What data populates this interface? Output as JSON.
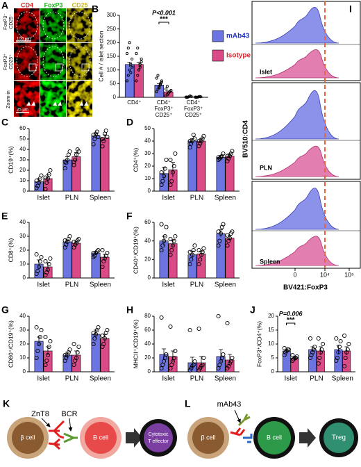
{
  "panels": {
    "A": {
      "label": "A",
      "columns": [
        "CD4",
        "FoxP3",
        "CD25"
      ],
      "rows": [
        [
          "FoxP3⁻",
          "CD25⁻"
        ],
        [
          "FoxP3⁺",
          "CD25⁺"
        ],
        [
          "Zoom-in"
        ]
      ],
      "scale_bars": [
        "100 μm",
        "25 μm"
      ]
    },
    "I": {
      "label": "I",
      "samples": [
        "Islet",
        "PLN",
        "Spleen"
      ],
      "x_label": "BV421:FoxP3",
      "y_label": "BV510:CD4",
      "x_tick_labels": [
        "0",
        "10⁴",
        "10⁵"
      ]
    },
    "K": {
      "label": "K",
      "labels": [
        "ZnT8",
        "BCR"
      ],
      "cells": [
        [
          "β cell"
        ],
        [
          "B cell"
        ],
        [
          "Cytotoxic",
          "T effector"
        ]
      ]
    },
    "L": {
      "label": "L",
      "labels": [
        "mAb43"
      ],
      "cells": [
        [
          "β cell"
        ],
        [
          "B cell"
        ],
        [
          "Treg"
        ]
      ]
    }
  },
  "chart_data": [
    {
      "type": "bar",
      "label": "B",
      "ylabel": "Cell # / islet section",
      "categories": [
        "CD4⁺",
        "CD4⁺ FoxP3⁺ CD25⁺",
        "CD4⁺ FoxP3⁺ CD25⁺"
      ],
      "series": [
        {
          "name": "mAb43",
          "color": "#6b74e0",
          "values": [
            120,
            45,
            2
          ],
          "errors": [
            8,
            5,
            1
          ],
          "points": [
            [
              60,
              80,
              100,
              120,
              140,
              160,
              180,
              200,
              90,
              110
            ],
            [
              20,
              30,
              40,
              50,
              60,
              70,
              80,
              35,
              45,
              55
            ],
            [
              0,
              0,
              2,
              5,
              3,
              1
            ]
          ]
        },
        {
          "name": "Isotype",
          "color": "#d94a86",
          "values": [
            120,
            20,
            2
          ],
          "errors": [
            8,
            3,
            1
          ],
          "points": [
            [
              60,
              80,
              100,
              120,
              140,
              160,
              180,
              100,
              110,
              130
            ],
            [
              5,
              10,
              15,
              20,
              25,
              30,
              40,
              15,
              20,
              25
            ],
            [
              0,
              0,
              1,
              3,
              2,
              1
            ]
          ]
        }
      ],
      "ylim": [
        0,
        300
      ],
      "yticks": [
        0,
        50,
        100,
        150,
        200,
        250,
        300
      ],
      "annotations": [
        "P<0.001",
        "***"
      ]
    },
    {
      "type": "bar",
      "label": "C",
      "ylabel": "CD19⁺(%)",
      "categories": [
        "Islet",
        "PLN",
        "Spleen"
      ],
      "series": [
        {
          "color": "#6b74e0",
          "values": [
            9,
            30,
            53
          ],
          "errors": [
            3,
            3,
            2
          ],
          "points": [
            [
              3,
              5,
              8,
              12,
              15,
              10
            ],
            [
              22,
              27,
              30,
              35,
              38,
              28
            ],
            [
              45,
              50,
              55,
              57,
              52,
              54
            ]
          ]
        },
        {
          "color": "#d94a86",
          "values": [
            12,
            33,
            51
          ],
          "errors": [
            4,
            4,
            3
          ],
          "points": [
            [
              2,
              8,
              12,
              16,
              20,
              13
            ],
            [
              25,
              30,
              35,
              40,
              38,
              28
            ],
            [
              43,
              48,
              55,
              58,
              52,
              50
            ]
          ]
        }
      ],
      "ylim": [
        0,
        60
      ],
      "yticks": [
        0,
        10,
        20,
        30,
        40,
        50,
        60
      ]
    },
    {
      "type": "bar",
      "label": "D",
      "ylabel": "CD4⁺(%)",
      "categories": [
        "Islet",
        "PLN",
        "Spleen"
      ],
      "series": [
        {
          "color": "#6b74e0",
          "values": [
            14,
            40,
            27
          ],
          "errors": [
            5,
            2,
            1.5
          ],
          "points": [
            [
              5,
              8,
              12,
              18,
              25,
              15
            ],
            [
              35,
              38,
              40,
              45,
              42,
              40
            ],
            [
              25,
              26,
              27,
              28,
              30,
              27
            ]
          ]
        },
        {
          "color": "#d94a86",
          "values": [
            17,
            40,
            28
          ],
          "errors": [
            6,
            2,
            2
          ],
          "points": [
            [
              5,
              8,
              15,
              20,
              30,
              25
            ],
            [
              36,
              38,
              40,
              42,
              44,
              40
            ],
            [
              24,
              26,
              28,
              30,
              32,
              28
            ]
          ]
        }
      ],
      "ylim": [
        0,
        50
      ],
      "yticks": [
        0,
        10,
        20,
        30,
        40,
        50
      ]
    },
    {
      "type": "bar",
      "label": "E",
      "ylabel": "CD8⁺(%)",
      "categories": [
        "Islet",
        "PLN",
        "Spleen"
      ],
      "series": [
        {
          "color": "#6b74e0",
          "values": [
            10,
            26,
            18
          ],
          "errors": [
            3,
            1.5,
            1
          ],
          "points": [
            [
              3,
              5,
              8,
              12,
              15,
              17
            ],
            [
              22,
              24,
              26,
              28,
              30,
              27
            ],
            [
              15,
              16,
              18,
              19,
              20,
              18
            ]
          ]
        },
        {
          "color": "#d94a86",
          "values": [
            8,
            25,
            15
          ],
          "errors": [
            3,
            1.5,
            2
          ],
          "points": [
            [
              2,
              4,
              6,
              10,
              14,
              12
            ],
            [
              22,
              24,
              25,
              27,
              28,
              26
            ],
            [
              8,
              12,
              14,
              16,
              18,
              20
            ]
          ]
        }
      ],
      "ylim": [
        0,
        40
      ],
      "yticks": [
        0,
        10,
        20,
        30,
        40
      ]
    },
    {
      "type": "bar",
      "label": "F",
      "ylabel": "CD40⁺/CD19⁺(%)",
      "categories": [
        "Islet",
        "PLN",
        "Spleen"
      ],
      "series": [
        {
          "color": "#6b74e0",
          "values": [
            40,
            25,
            48
          ],
          "errors": [
            5,
            4,
            4
          ],
          "points": [
            [
              30,
              35,
              40,
              45,
              55,
              58
            ],
            [
              15,
              20,
              25,
              30,
              35,
              28
            ],
            [
              35,
              40,
              48,
              55,
              58,
              50
            ]
          ]
        },
        {
          "color": "#d94a86",
          "values": [
            37,
            26,
            43
          ],
          "errors": [
            4,
            3,
            3
          ],
          "points": [
            [
              25,
              30,
              35,
              40,
              45,
              42
            ],
            [
              15,
              20,
              25,
              28,
              32,
              30
            ],
            [
              35,
              40,
              43,
              48,
              50,
              46
            ]
          ]
        }
      ],
      "ylim": [
        0,
        60
      ],
      "yticks": [
        0,
        20,
        40,
        60
      ]
    },
    {
      "type": "bar",
      "label": "G",
      "ylabel": "CD80⁺/CD19⁺(%)",
      "categories": [
        "Islet",
        "PLN",
        "Spleen"
      ],
      "series": [
        {
          "color": "#6b74e0",
          "values": [
            22,
            12,
            27
          ],
          "errors": [
            3,
            2,
            3
          ],
          "points": [
            [
              10,
              15,
              20,
              25,
              30,
              32
            ],
            [
              8,
              10,
              12,
              14,
              16,
              12
            ],
            [
              20,
              24,
              27,
              30,
              32,
              28
            ]
          ]
        },
        {
          "color": "#d94a86",
          "values": [
            15,
            12,
            24
          ],
          "errors": [
            3,
            3,
            3
          ],
          "points": [
            [
              5,
              8,
              12,
              18,
              22,
              25
            ],
            [
              5,
              8,
              10,
              14,
              18,
              20
            ],
            [
              18,
              20,
              24,
              28,
              30,
              26
            ]
          ]
        }
      ],
      "ylim": [
        0,
        40
      ],
      "yticks": [
        0,
        10,
        20,
        30,
        40
      ]
    },
    {
      "type": "bar",
      "label": "H",
      "ylabel": "MHCII⁺/CD19⁺(%)",
      "categories": [
        "Islet",
        "PLN",
        "Spleen"
      ],
      "series": [
        {
          "color": "#6b74e0",
          "values": [
            25,
            13,
            22
          ],
          "errors": [
            8,
            8,
            10
          ],
          "points": [
            [
              5,
              10,
              15,
              20,
              25,
              78
            ],
            [
              2,
              5,
              8,
              10,
              15,
              60
            ],
            [
              5,
              10,
              15,
              20,
              25,
              80
            ]
          ]
        },
        {
          "color": "#d94a86",
          "values": [
            22,
            13,
            17
          ],
          "errors": [
            8,
            9,
            8
          ],
          "points": [
            [
              5,
              10,
              15,
              20,
              30,
              65
            ],
            [
              2,
              5,
              8,
              10,
              20,
              62
            ],
            [
              5,
              8,
              12,
              15,
              20,
              70
            ]
          ]
        }
      ],
      "ylim": [
        0,
        80
      ],
      "yticks": [
        0,
        20,
        40,
        60,
        80
      ]
    },
    {
      "type": "bar",
      "label": "J",
      "ylabel": "FoxP3⁺/CD4⁺(%)",
      "categories": [
        "Islet",
        "PLN",
        "Spleen"
      ],
      "series": [
        {
          "color": "#6b74e0",
          "values": [
            7.5,
            8,
            8
          ],
          "errors": [
            0.5,
            1,
            1.5
          ],
          "points": [
            [
              6,
              7,
              7.5,
              8,
              8,
              8.5
            ],
            [
              5,
              6,
              7,
              8,
              9,
              12
            ],
            [
              4,
              5,
              7,
              9,
              11,
              12
            ]
          ]
        },
        {
          "color": "#d94a86",
          "values": [
            5,
            7.5,
            7.5
          ],
          "errors": [
            0.5,
            1.5,
            1.5
          ],
          "points": [
            [
              4,
              4.5,
              5,
              5,
              5.5,
              6
            ],
            [
              3,
              5,
              7,
              8,
              10,
              12
            ],
            [
              2,
              5,
              7,
              8,
              10,
              13
            ]
          ]
        }
      ],
      "ylim": [
        0,
        20
      ],
      "yticks": [
        0,
        5,
        10,
        15,
        20
      ],
      "annotations": [
        "P=0.006",
        "***"
      ]
    }
  ]
}
